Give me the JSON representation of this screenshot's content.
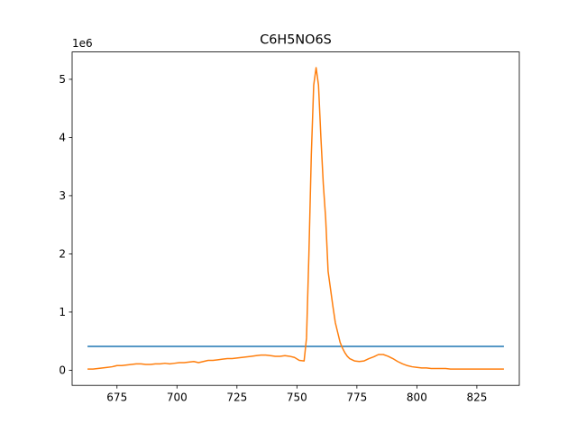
{
  "chart_data": {
    "type": "line",
    "title": "C6H5NO6S",
    "xlabel": "",
    "ylabel": "",
    "y_offset_label": "1e6",
    "xlim": [
      656.3,
      842.7
    ],
    "ylim": [
      -0.26,
      5.47
    ],
    "x_ticks": [
      675,
      700,
      725,
      750,
      775,
      800,
      825
    ],
    "x_tick_labels": [
      "675",
      "700",
      "725",
      "750",
      "775",
      "800",
      "825"
    ],
    "y_ticks": [
      0,
      1,
      2,
      3,
      4,
      5
    ],
    "y_tick_labels": [
      "0",
      "1",
      "2",
      "3",
      "4",
      "5"
    ],
    "grid": false,
    "legend": "none",
    "series": [
      {
        "color": "#1f77b4",
        "x": [
          663,
          836
        ],
        "y": [
          0.41,
          0.41
        ]
      },
      {
        "color": "#ff7f0e",
        "x": [
          663,
          665,
          667,
          669,
          671,
          673,
          675,
          677,
          679,
          681,
          683,
          685,
          687,
          689,
          691,
          693,
          695,
          697,
          699,
          701,
          703,
          705,
          707,
          709,
          711,
          713,
          715,
          717,
          719,
          721,
          723,
          725,
          727,
          729,
          731,
          733,
          735,
          737,
          739,
          741,
          743,
          745,
          747,
          749,
          751,
          753,
          754,
          755,
          756,
          757,
          758,
          759,
          760,
          761,
          762,
          763,
          764,
          765,
          766,
          767,
          768,
          769,
          770,
          771,
          772,
          773,
          774,
          776,
          778,
          780,
          782,
          784,
          786,
          788,
          790,
          792,
          794,
          796,
          798,
          800,
          802,
          804,
          806,
          808,
          810,
          812,
          814,
          816,
          818,
          820,
          822,
          824,
          826,
          828,
          830,
          832,
          834,
          836
        ],
        "y": [
          0.02,
          0.02,
          0.03,
          0.04,
          0.05,
          0.06,
          0.08,
          0.08,
          0.09,
          0.1,
          0.11,
          0.11,
          0.1,
          0.1,
          0.11,
          0.11,
          0.12,
          0.11,
          0.12,
          0.13,
          0.13,
          0.14,
          0.15,
          0.13,
          0.15,
          0.17,
          0.17,
          0.18,
          0.19,
          0.2,
          0.2,
          0.21,
          0.22,
          0.23,
          0.24,
          0.25,
          0.26,
          0.26,
          0.25,
          0.24,
          0.24,
          0.25,
          0.24,
          0.22,
          0.17,
          0.16,
          0.55,
          2.0,
          3.7,
          4.9,
          5.2,
          4.9,
          4.0,
          3.2,
          2.6,
          1.7,
          1.4,
          1.1,
          0.82,
          0.65,
          0.48,
          0.38,
          0.3,
          0.24,
          0.2,
          0.18,
          0.16,
          0.15,
          0.16,
          0.2,
          0.23,
          0.27,
          0.27,
          0.24,
          0.2,
          0.15,
          0.11,
          0.08,
          0.06,
          0.05,
          0.04,
          0.04,
          0.03,
          0.03,
          0.03,
          0.03,
          0.02,
          0.02,
          0.02,
          0.02,
          0.02,
          0.02,
          0.02,
          0.02,
          0.02,
          0.02,
          0.02,
          0.02
        ]
      }
    ]
  }
}
